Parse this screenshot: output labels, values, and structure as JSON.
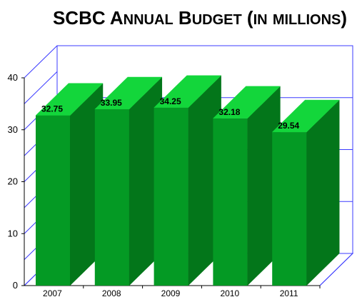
{
  "chart_data": {
    "type": "bar",
    "title": "SCBC Annual Budget (in millions)",
    "categories": [
      "2007",
      "2008",
      "2009",
      "2010",
      "2011"
    ],
    "values": [
      32.75,
      33.95,
      34.25,
      32.18,
      29.54
    ],
    "ylim": [
      0,
      40
    ],
    "yticks": [
      0,
      10,
      20,
      30,
      40
    ],
    "grid": true,
    "colors": {
      "bar_front": "#049a24",
      "bar_top": "#13d63b",
      "bar_side": "#03761a",
      "grid": "#3b3bff",
      "axis": "#000000"
    }
  }
}
